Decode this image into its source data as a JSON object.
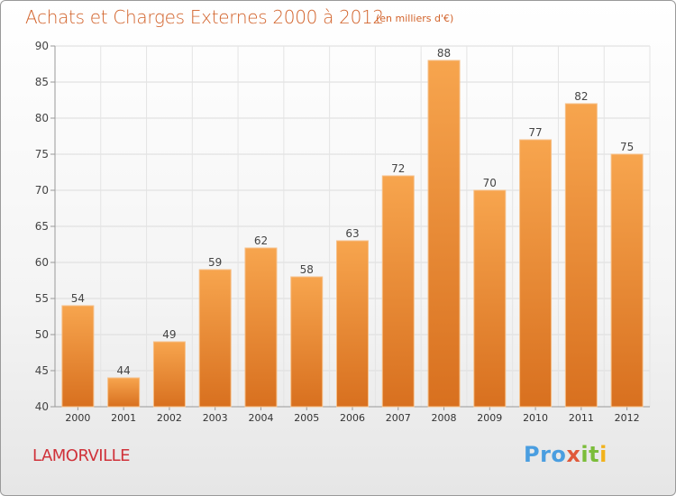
{
  "title": "Achats et Charges Externes 2000 à 2012",
  "subtitle": "(en milliers d'€)",
  "location": "LAMORVILLE",
  "logo": {
    "p1": "Pro",
    "p2": "x",
    "p3": "it",
    "p4": "i"
  },
  "colors": {
    "bar_top": "#f7a54e",
    "bar_bottom": "#d8701f",
    "title": "#d2622a",
    "location": "#d0323a"
  },
  "chart_data": {
    "type": "bar",
    "categories": [
      "2000",
      "2001",
      "2002",
      "2003",
      "2004",
      "2005",
      "2006",
      "2007",
      "2008",
      "2009",
      "2010",
      "2011",
      "2012"
    ],
    "values": [
      54,
      44,
      49,
      59,
      62,
      58,
      63,
      72,
      88,
      70,
      77,
      82,
      75
    ],
    "ylim": [
      40,
      90
    ],
    "yticks": [
      40,
      45,
      50,
      55,
      60,
      65,
      70,
      75,
      80,
      85,
      90
    ],
    "grid": true,
    "legend": "none"
  }
}
